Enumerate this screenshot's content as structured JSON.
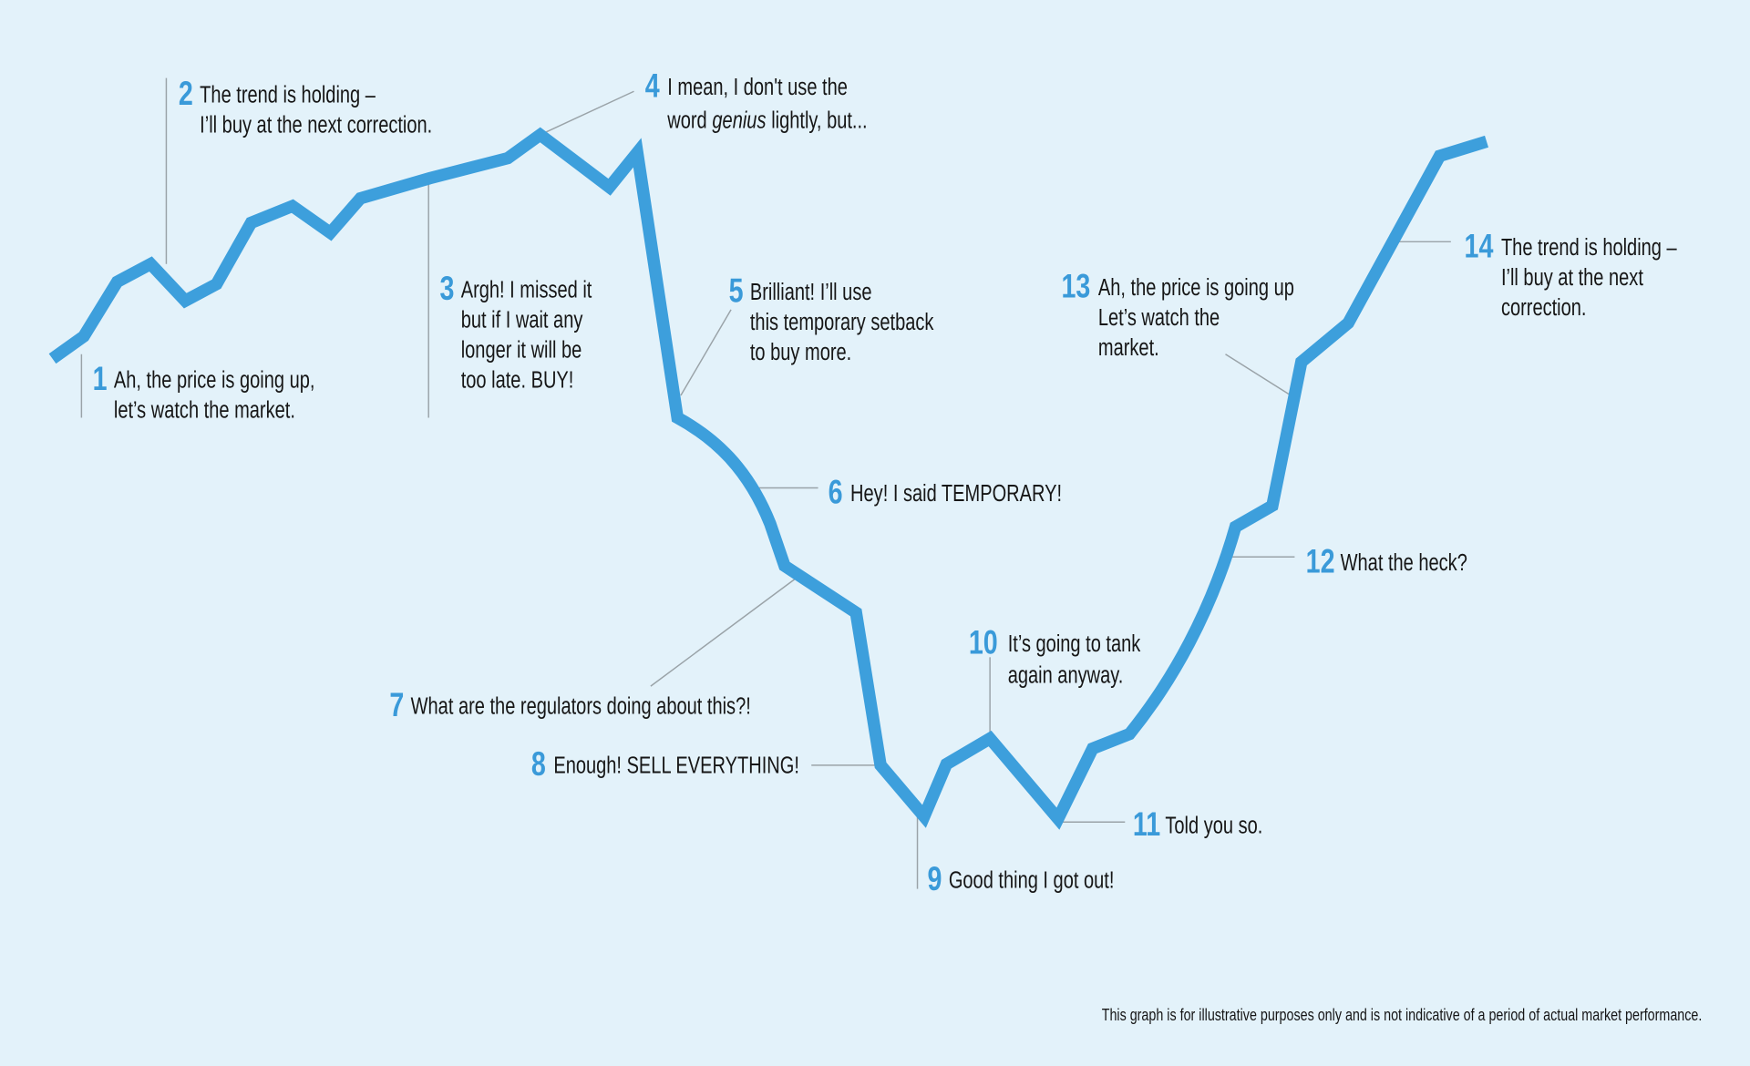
{
  "annotations": [
    {
      "number": "1",
      "lines": [
        "Ah, the price is going up,",
        "let’s watch the market."
      ]
    },
    {
      "number": "2",
      "lines": [
        "The trend is holding –",
        "I’ll buy at the next correction."
      ]
    },
    {
      "number": "3",
      "lines": [
        "Argh! I missed it",
        "but if I wait any",
        "longer it will be",
        "too late. BUY!"
      ]
    },
    {
      "number": "4",
      "lines": [
        "I mean, I don't use the",
        [
          "word",
          "genius",
          "lightly, but..."
        ]
      ]
    },
    {
      "number": "5",
      "lines": [
        "Brilliant! I’ll use",
        "this temporary setback",
        "to buy more."
      ]
    },
    {
      "number": "6",
      "lines": [
        "Hey! I said TEMPORARY!"
      ]
    },
    {
      "number": "7",
      "lines": [
        "What are the regulators doing about this?!"
      ]
    },
    {
      "number": "8",
      "lines": [
        "Enough! SELL EVERYTHING!"
      ]
    },
    {
      "number": "9",
      "lines": [
        "Good thing I got out!"
      ]
    },
    {
      "number": "10",
      "lines": [
        "It’s going to tank",
        "again anyway."
      ]
    },
    {
      "number": "11",
      "lines": [
        "Told you so."
      ]
    },
    {
      "number": "12",
      "lines": [
        "What the heck?"
      ]
    },
    {
      "number": "13",
      "lines": [
        "Ah, the price is going up",
        "Let’s watch the",
        "market."
      ]
    },
    {
      "number": "14",
      "lines": [
        "The trend is holding –",
        "I’ll buy at the next",
        "correction."
      ]
    }
  ],
  "footnote": "This graph is for illustrative purposes only and is not indicative of a period of actual market performance."
}
